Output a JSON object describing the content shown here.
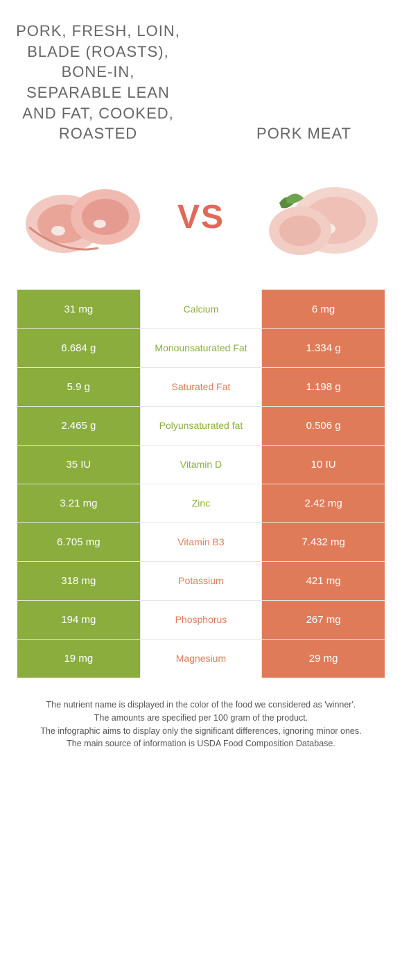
{
  "colors": {
    "green": "#8aad3e",
    "orange": "#e07b59",
    "grid": "#e6e6e6",
    "title": "#666666",
    "vs": "#e0695a"
  },
  "header": {
    "left_title": "PORK, FRESH, LOIN, BLADE (ROASTS), BONE-IN, SEPARABLE LEAN AND FAT, COOKED, ROASTED",
    "right_title": "PORK MEAT",
    "vs": "VS"
  },
  "rows": [
    {
      "nutrient": "Calcium",
      "left": "31 mg",
      "right": "6 mg",
      "winner": "left"
    },
    {
      "nutrient": "Monounsaturated Fat",
      "left": "6.684 g",
      "right": "1.334 g",
      "winner": "left"
    },
    {
      "nutrient": "Saturated Fat",
      "left": "5.9 g",
      "right": "1.198 g",
      "winner": "right"
    },
    {
      "nutrient": "Polyunsaturated fat",
      "left": "2.465 g",
      "right": "0.506 g",
      "winner": "left"
    },
    {
      "nutrient": "Vitamin D",
      "left": "35 IU",
      "right": "10 IU",
      "winner": "left"
    },
    {
      "nutrient": "Zinc",
      "left": "3.21 mg",
      "right": "2.42 mg",
      "winner": "left"
    },
    {
      "nutrient": "Vitamin B3",
      "left": "6.705 mg",
      "right": "7.432 mg",
      "winner": "right"
    },
    {
      "nutrient": "Potassium",
      "left": "318 mg",
      "right": "421 mg",
      "winner": "right"
    },
    {
      "nutrient": "Phosphorus",
      "left": "194 mg",
      "right": "267 mg",
      "winner": "right"
    },
    {
      "nutrient": "Magnesium",
      "left": "19 mg",
      "right": "29 mg",
      "winner": "right"
    }
  ],
  "footer": {
    "line1": "The nutrient name is displayed in the color of the food we considered as 'winner'.",
    "line2": "The amounts are specified per 100 gram of the product.",
    "line3": "The infographic aims to display only the significant differences, ignoring minor ones.",
    "line4": "The main source of information is USDA Food Composition Database."
  }
}
